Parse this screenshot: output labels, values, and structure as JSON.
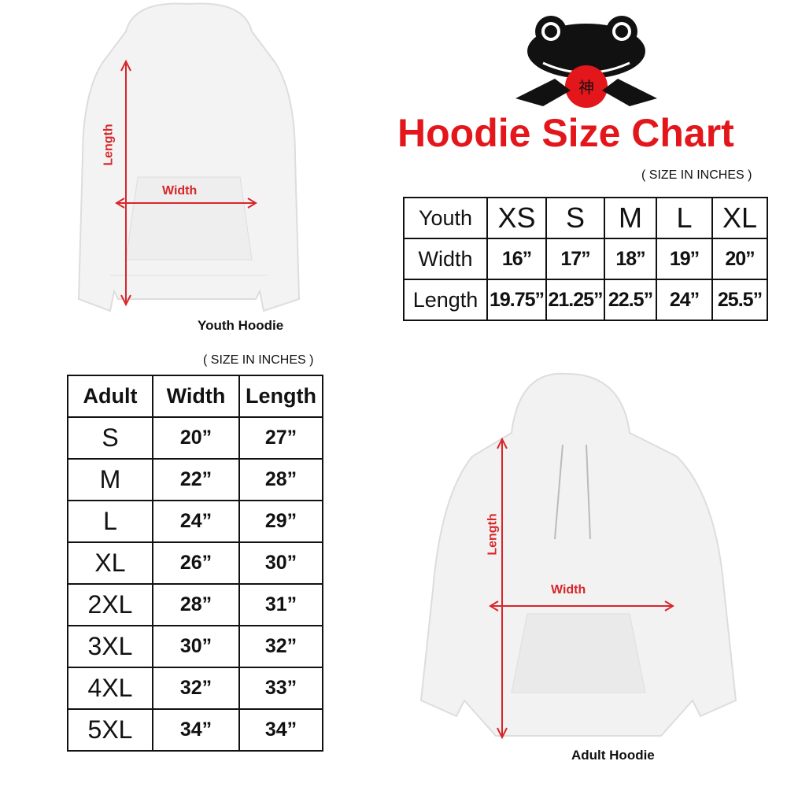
{
  "title": "Hoodie Size Chart",
  "unit_note": "( SIZE IN INCHES )",
  "accent_color": "#e3161b",
  "logo": {
    "name": "frog-logo",
    "glyph": "神"
  },
  "youth": {
    "caption": "Youth Hoodie",
    "measure_labels": {
      "length": "Length",
      "width": "Width"
    },
    "table": {
      "header": "Youth",
      "sizes": [
        "XS",
        "S",
        "M",
        "L",
        "XL"
      ],
      "rows": [
        {
          "label": "Width",
          "values": [
            "16”",
            "17”",
            "18”",
            "19”",
            "20”"
          ]
        },
        {
          "label": "Length",
          "values": [
            "19.75”",
            "21.25”",
            "22.5”",
            "24”",
            "25.5”"
          ]
        }
      ]
    }
  },
  "adult": {
    "caption": "Adult Hoodie",
    "measure_labels": {
      "length": "Length",
      "width": "Width"
    },
    "table": {
      "headers": [
        "Adult",
        "Width",
        "Length"
      ],
      "rows": [
        {
          "size": "S",
          "width": "20”",
          "length": "27”"
        },
        {
          "size": "M",
          "width": "22”",
          "length": "28”"
        },
        {
          "size": "L",
          "width": "24”",
          "length": "29”"
        },
        {
          "size": "XL",
          "width": "26”",
          "length": "30”"
        },
        {
          "size": "2XL",
          "width": "28”",
          "length": "31”"
        },
        {
          "size": "3XL",
          "width": "30”",
          "length": "32”"
        },
        {
          "size": "4XL",
          "width": "32”",
          "length": "33”"
        },
        {
          "size": "5XL",
          "width": "34”",
          "length": "34”"
        }
      ]
    }
  }
}
